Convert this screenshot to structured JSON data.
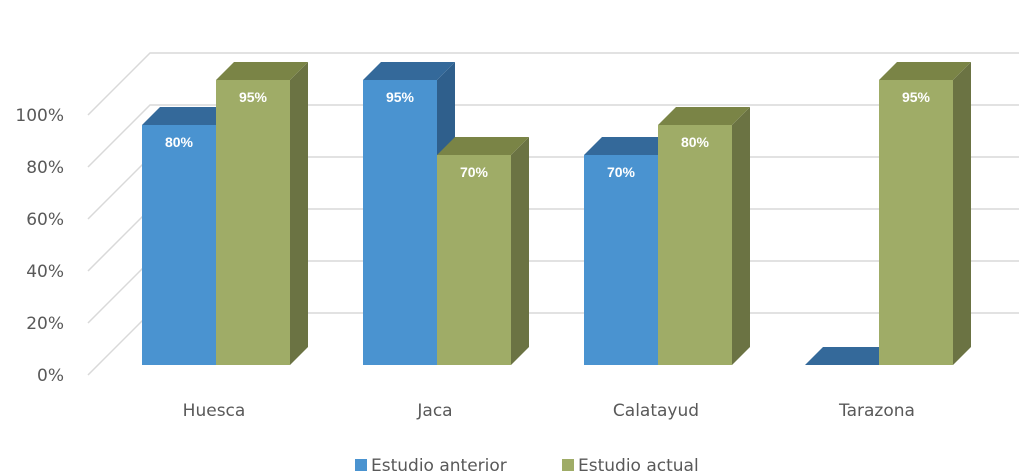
{
  "chart_data": {
    "type": "bar",
    "style": "3d-clustered-column",
    "categories": [
      "Huesca",
      "Jaca",
      "Calatayud",
      "Tarazona"
    ],
    "series": [
      {
        "name": "Estudio anterior",
        "values": [
          80,
          95,
          70,
          0
        ],
        "labels": [
          "80%",
          "95%",
          "70%",
          null
        ],
        "color": "#4a93d0",
        "top_color": "#34699a",
        "side_color": "#2f5f8c"
      },
      {
        "name": "Estudio actual",
        "values": [
          95,
          70,
          80,
          95
        ],
        "labels": [
          "95%",
          "70%",
          "80%",
          "95%"
        ],
        "color": "#9fac67",
        "top_color": "#7a8446",
        "side_color": "#6b7343"
      }
    ],
    "y_ticks": [
      "0%",
      "20%",
      "40%",
      "60%",
      "80%",
      "100%"
    ],
    "ylim": [
      0,
      100
    ],
    "grid": true,
    "legend_position": "bottom"
  }
}
